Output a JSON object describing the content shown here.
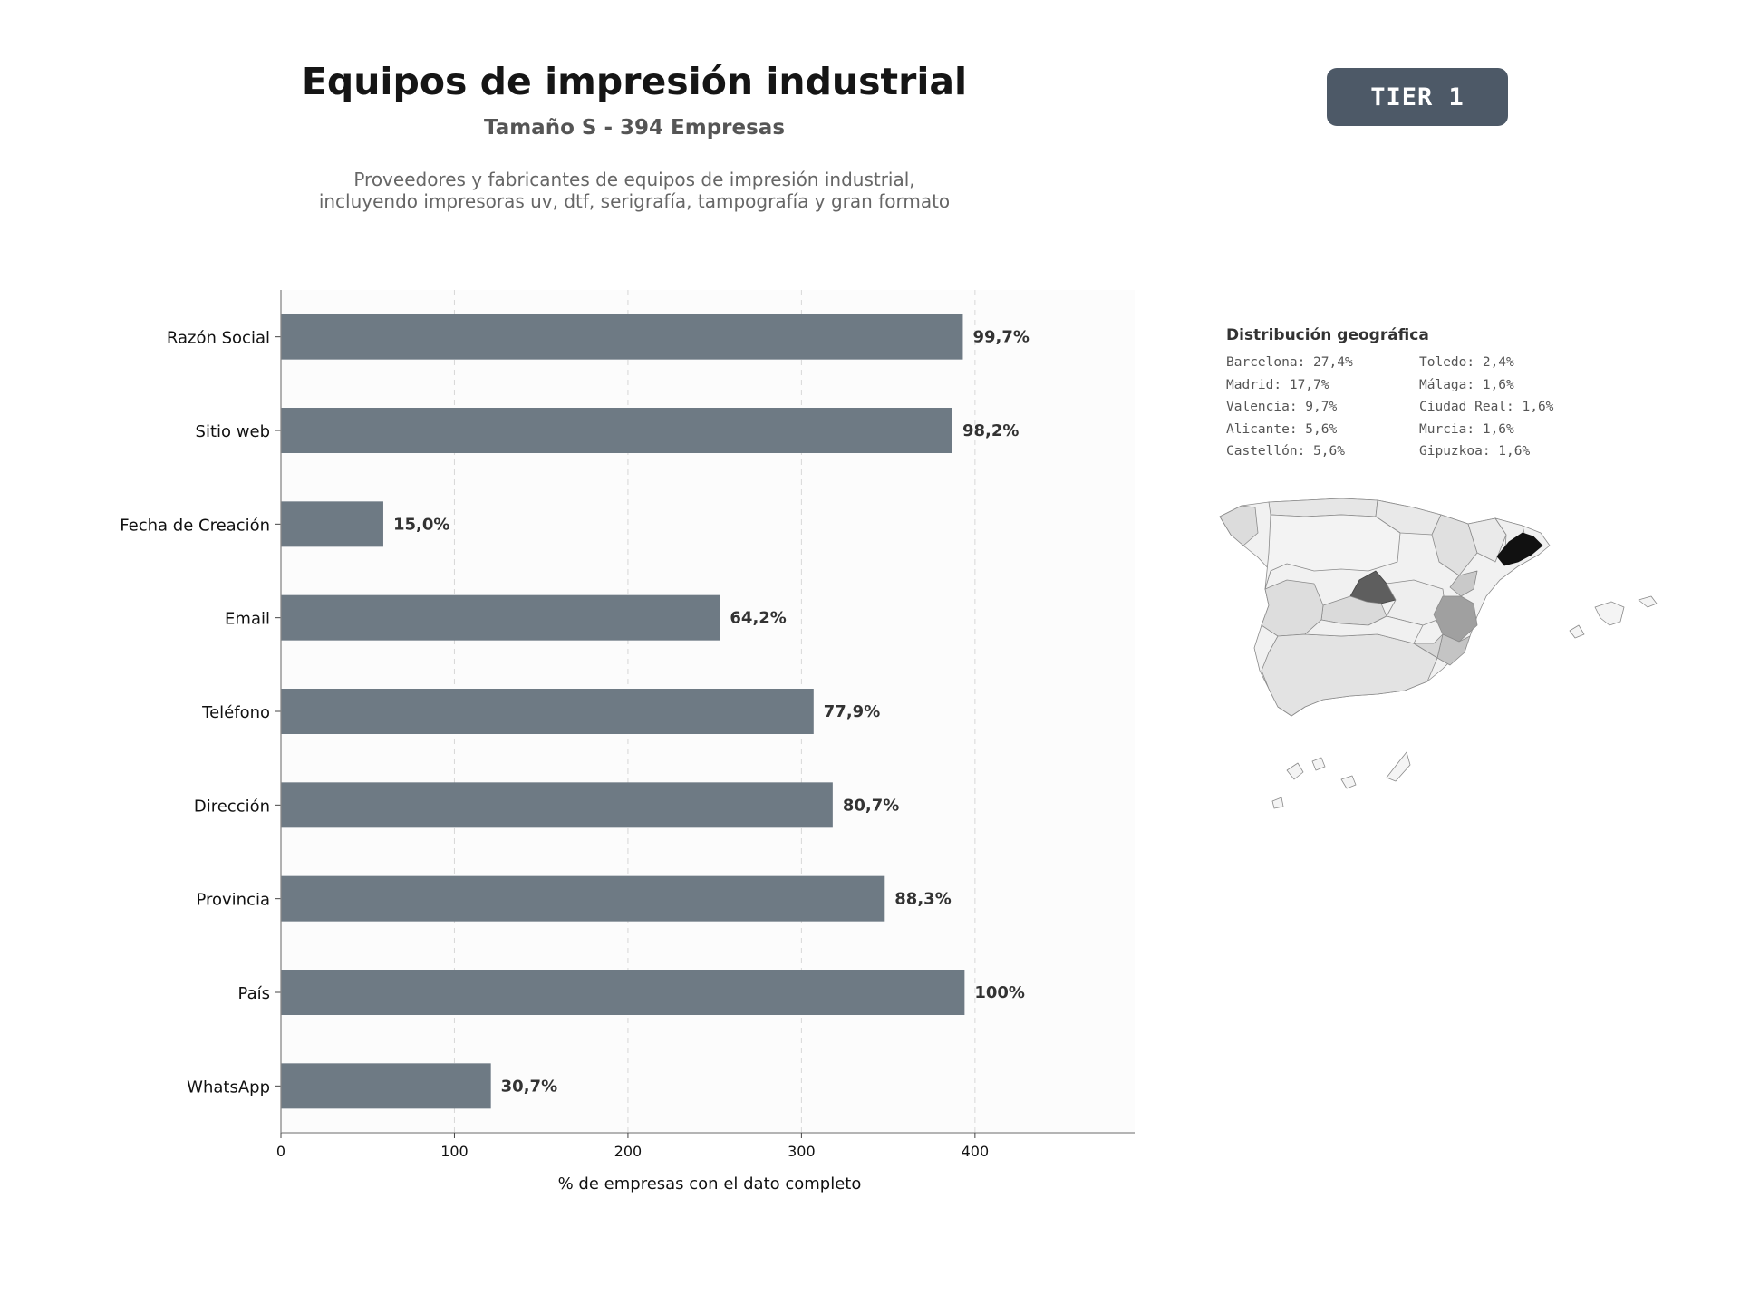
{
  "header": {
    "title": "Equipos de impresión industrial",
    "subtitle": "Tamaño S - 394 Empresas",
    "description_line1": "Proveedores y fabricantes de equipos de impresión industrial,",
    "description_line2": "incluyendo impresoras uv, dtf, serigrafía, tampografía y gran formato",
    "badge": "TIER 1"
  },
  "colors": {
    "bar": "#6e7a84",
    "badge_bg": "#4d5967",
    "plot_bg": "#fcfcfc",
    "map_highlight_1": "#111111",
    "map_highlight_2": "#5e5e5e",
    "map_highlight_3": "#a0a0a0"
  },
  "chart_data": {
    "type": "bar",
    "orientation": "horizontal",
    "categories": [
      "Razón Social",
      "Sitio web",
      "Fecha de Creación",
      "Email",
      "Teléfono",
      "Dirección",
      "Provincia",
      "País",
      "WhatsApp"
    ],
    "values": [
      393,
      387,
      59,
      253,
      307,
      318,
      348,
      394,
      121
    ],
    "data_labels": [
      "99,7%",
      "98,2%",
      "15,0%",
      "64,2%",
      "77,9%",
      "80,7%",
      "88,3%",
      "100%",
      "30,7%"
    ],
    "xlabel": "% de empresas con el dato completo",
    "ylabel": "",
    "xlim": [
      0,
      492
    ],
    "xticks": [
      0,
      100,
      200,
      300,
      400
    ],
    "grid": "vertical dashed"
  },
  "geo": {
    "title": "Distribución geográfica",
    "col1": [
      "Barcelona: 27,4%",
      "Madrid: 17,7%",
      "Valencia: 9,7%",
      "Alicante: 5,6%",
      "Castellón: 5,6%"
    ],
    "col2": [
      "Toledo: 2,4%",
      "Málaga: 1,6%",
      "Ciudad Real: 1,6%",
      "Murcia: 1,6%",
      "Gipuzkoa: 1,6%"
    ]
  }
}
